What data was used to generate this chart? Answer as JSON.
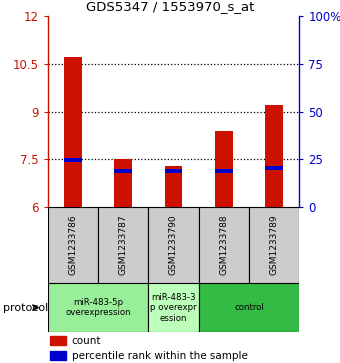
{
  "title": "GDS5347 / 1553970_s_at",
  "samples": [
    "GSM1233786",
    "GSM1233787",
    "GSM1233790",
    "GSM1233788",
    "GSM1233789"
  ],
  "red_values": [
    10.72,
    7.5,
    7.28,
    8.4,
    9.22
  ],
  "blue_values": [
    7.48,
    7.12,
    7.12,
    7.12,
    7.22
  ],
  "ymin": 6,
  "ymax": 12,
  "yticks_left": [
    6,
    7.5,
    9,
    10.5,
    12
  ],
  "ytick_labels_left": [
    "6",
    "7.5",
    "9",
    "10.5",
    "12"
  ],
  "yticks_right": [
    0,
    25,
    50,
    75,
    100
  ],
  "ytick_labels_right": [
    "0",
    "25",
    "50",
    "75",
    "100%"
  ],
  "bar_width": 0.35,
  "red_color": "#cc1100",
  "blue_color": "#0000cc",
  "protocol_spans": [
    {
      "start": 0,
      "end": 2,
      "label": "miR-483-5p\noverexpression",
      "color": "#99ee99"
    },
    {
      "start": 2,
      "end": 3,
      "label": "miR-483-3\np overexpr\nession",
      "color": "#bbffbb"
    },
    {
      "start": 3,
      "end": 5,
      "label": "control",
      "color": "#33bb44"
    }
  ],
  "legend_count_label": "count",
  "legend_percentile_label": "percentile rank within the sample",
  "protocol_label": "protocol",
  "sample_box_color": "#cccccc",
  "dotted_lines": [
    7.5,
    9,
    10.5
  ]
}
